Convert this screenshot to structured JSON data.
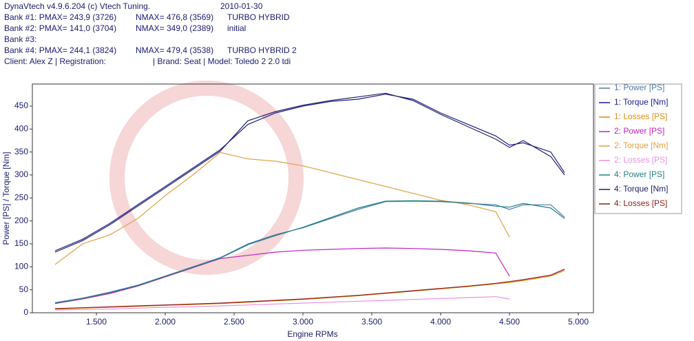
{
  "header": [
    [
      "DynaVtech v4.9.6.204 (c) Vtech Tuning.",
      "2010-01-30"
    ],
    [
      "Bank #1: PMAX= 243,9 (3726)",
      "NMAX= 476,8 (3569)",
      "TURBO HYBRID"
    ],
    [
      "Bank #2: PMAX= 141,0 (3704)",
      "NMAX= 349,0 (2389)",
      "initial"
    ],
    [
      "Bank #3:"
    ],
    [
      "Bank #4: PMAX= 244,1 (3824)",
      "NMAX= 479,4 (3538)",
      "TURBO HYBRID 2"
    ],
    [
      "Client: Alex Z | Registration:",
      "| Brand: Seat | Model: Toledo 2 2.0 tdi"
    ]
  ],
  "chart_data": {
    "type": "line",
    "x_label": "Engine RPMs",
    "y_label": "Power [PS] / Torque [Nm]",
    "x": [
      1200,
      1400,
      1600,
      1800,
      2000,
      2200,
      2400,
      2600,
      2800,
      3000,
      3200,
      3400,
      3600,
      3800,
      4000,
      4200,
      4400,
      4500,
      4600,
      4800,
      4900
    ],
    "xlim": [
      1035,
      5110
    ],
    "xticks": [
      {
        "value": 1500,
        "label": "1.500"
      },
      {
        "value": 2000,
        "label": "2.000"
      },
      {
        "value": 2500,
        "label": "2.500"
      },
      {
        "value": 3000,
        "label": "3.000"
      },
      {
        "value": 3500,
        "label": "3.500"
      },
      {
        "value": 4000,
        "label": "4.000"
      },
      {
        "value": 4500,
        "label": "4.500"
      },
      {
        "value": 5000,
        "label": "5.000"
      }
    ],
    "ylim": [
      0,
      498
    ],
    "yticks": [
      0,
      50,
      100,
      150,
      200,
      250,
      300,
      350,
      400,
      450
    ],
    "grid": false,
    "legend": "right",
    "series": [
      {
        "name": "1: Power [PS]",
        "color": "#4a78b0",
        "values": [
          22,
          32,
          45,
          60,
          80,
          100,
          120,
          150,
          170,
          185,
          205,
          225,
          242,
          243,
          242,
          238,
          235,
          225,
          235,
          235,
          208
        ]
      },
      {
        "name": "1: Torque [Nm]",
        "color": "#1a1a8c",
        "values": [
          135,
          160,
          195,
          235,
          275,
          315,
          355,
          410,
          435,
          450,
          460,
          465,
          476,
          465,
          435,
          410,
          385,
          365,
          370,
          350,
          305
        ]
      },
      {
        "name": "1: Losses [PS]",
        "color": "#e08a10",
        "values": [
          8,
          10,
          12,
          14,
          16,
          18,
          20,
          23,
          26,
          29,
          33,
          37,
          42,
          47,
          52,
          57,
          63,
          66,
          70,
          80,
          92
        ]
      },
      {
        "name": "2: Power [PS]",
        "color": "#c020c0",
        "values": [
          20,
          30,
          42,
          58,
          78,
          98,
          118,
          125,
          132,
          136,
          138,
          140,
          141,
          140,
          138,
          135,
          130,
          80,
          null,
          null,
          null
        ]
      },
      {
        "name": "2: Torque [Nm]",
        "color": "#e0a040",
        "values": [
          105,
          150,
          170,
          205,
          255,
          300,
          349,
          335,
          330,
          320,
          305,
          290,
          275,
          260,
          245,
          235,
          220,
          165,
          null,
          null,
          null
        ]
      },
      {
        "name": "2: Losses [PS]",
        "color": "#e890e0",
        "values": [
          6,
          7,
          8,
          10,
          12,
          13,
          15,
          17,
          19,
          21,
          23,
          25,
          27,
          29,
          31,
          33,
          35,
          30,
          null,
          null,
          null
        ]
      },
      {
        "name": "4: Power [PS]",
        "color": "#208080",
        "values": [
          21,
          31,
          44,
          59,
          79,
          99,
          119,
          148,
          168,
          186,
          207,
          228,
          243,
          244,
          243,
          239,
          232,
          230,
          238,
          228,
          205
        ]
      },
      {
        "name": "4: Torque [Nm]",
        "color": "#202060",
        "values": [
          132,
          157,
          192,
          232,
          272,
          312,
          352,
          418,
          438,
          452,
          462,
          470,
          478,
          462,
          432,
          405,
          378,
          360,
          375,
          340,
          300
        ]
      },
      {
        "name": "4: Losses [PS]",
        "color": "#8b1a1a",
        "values": [
          9,
          11,
          13,
          15,
          17,
          19,
          21,
          24,
          27,
          30,
          34,
          38,
          43,
          48,
          53,
          58,
          64,
          68,
          72,
          82,
          95
        ]
      }
    ]
  }
}
